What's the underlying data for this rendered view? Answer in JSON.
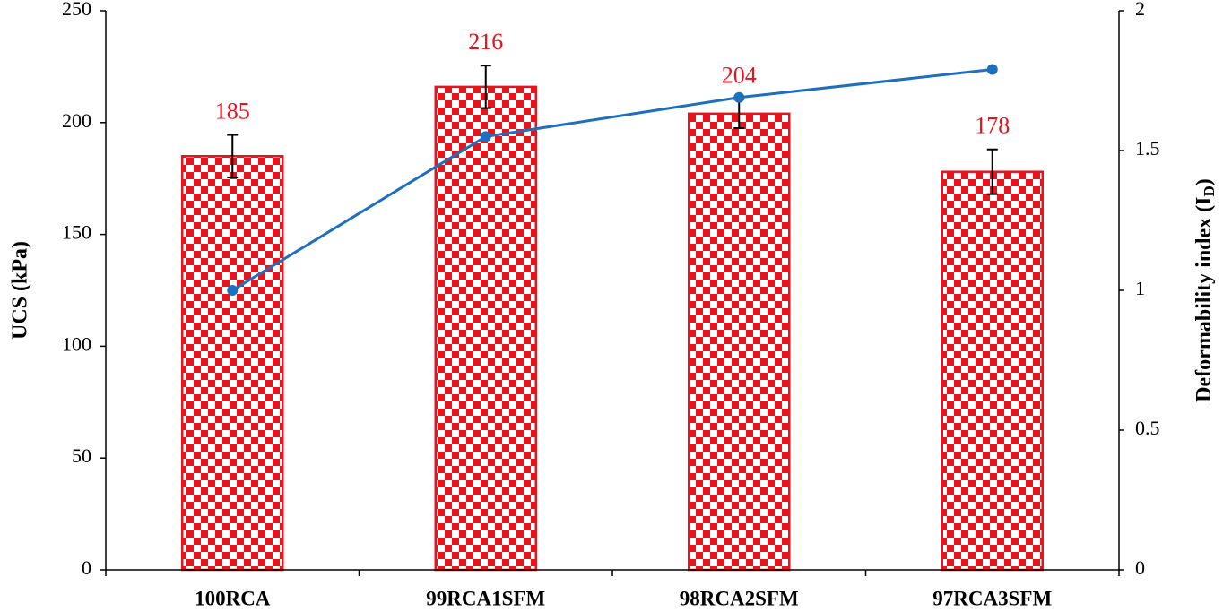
{
  "chart_data": {
    "type": "combo",
    "categories": [
      "100RCA",
      "99RCA1SFM",
      "98RCA2SFM",
      "97RCA3SFM"
    ],
    "series": [
      {
        "type": "bar",
        "color": "#e8141c",
        "values": [
          185,
          216,
          204,
          178
        ],
        "errors": [
          9.5,
          9.5,
          6.5,
          10
        ]
      },
      {
        "type": "line",
        "axis": "y2",
        "color": "#1f6fbf",
        "values": [
          1.0,
          1.55,
          1.69,
          1.79
        ]
      }
    ],
    "ylabel": "UCS (kPa)",
    "y2label": {
      "text": "Deformability index (I",
      "subscript": "D",
      "suffix": ")"
    },
    "ylim": [
      0,
      250
    ],
    "yticks": [
      0,
      50,
      100,
      150,
      200,
      250
    ],
    "y2lim": [
      0,
      2
    ],
    "y2ticks": [
      0,
      0.5,
      1,
      1.5,
      2
    ],
    "grid": false
  }
}
